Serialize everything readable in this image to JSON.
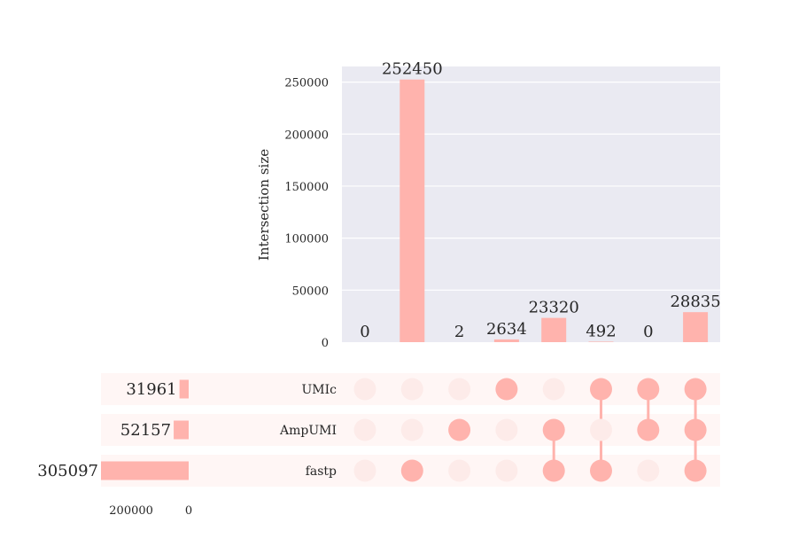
{
  "chart_data": {
    "type": "upset",
    "ylabel": "Intersection size",
    "ylim": [
      0,
      265000
    ],
    "yticks": [
      0,
      50000,
      100000,
      150000,
      200000,
      250000
    ],
    "sets": [
      {
        "name": "UMIc",
        "size": 31961
      },
      {
        "name": "AmpUMI",
        "size": 52157
      },
      {
        "name": "fastp",
        "size": 305097
      }
    ],
    "set_size_ticks": [
      200000,
      0
    ],
    "set_size_max": 305097,
    "intersections": [
      {
        "members": [],
        "size": 0
      },
      {
        "members": [
          "fastp"
        ],
        "size": 252450
      },
      {
        "members": [
          "AmpUMI"
        ],
        "size": 2
      },
      {
        "members": [
          "UMIc"
        ],
        "size": 2634
      },
      {
        "members": [
          "AmpUMI",
          "fastp"
        ],
        "size": 23320
      },
      {
        "members": [
          "UMIc",
          "fastp"
        ],
        "size": 492
      },
      {
        "members": [
          "UMIc",
          "AmpUMI"
        ],
        "size": 0
      },
      {
        "members": [
          "UMIc",
          "AmpUMI",
          "fastp"
        ],
        "size": 28835
      }
    ]
  },
  "colors": {
    "bar": "#ffb3ad",
    "dot_active": "#ffb3ad",
    "dot_inactive": "#fdebe9",
    "plot_bg": "#eaeaf2",
    "grid": "#ffffff",
    "row_shade": "#fff6f5"
  }
}
